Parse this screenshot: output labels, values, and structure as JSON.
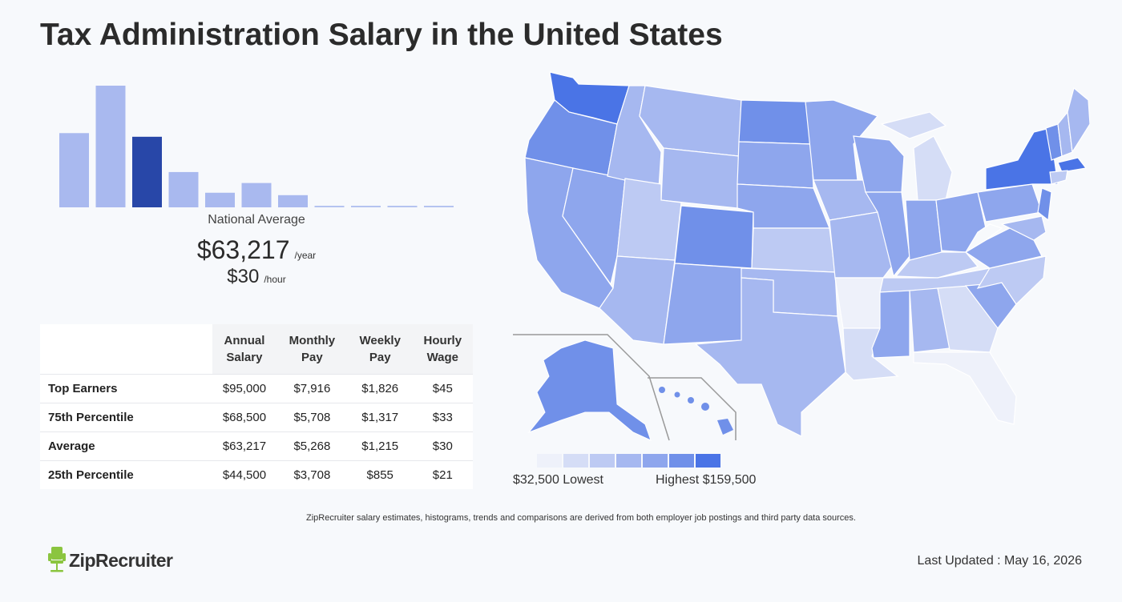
{
  "title": "Tax Administration Salary in the United States",
  "national": {
    "label": "National Average",
    "yearly": "$63,217",
    "yearly_unit": "/year",
    "hourly": "$30",
    "hourly_unit": "/hour"
  },
  "chart_data": {
    "type": "bar",
    "values": [
      61,
      100,
      58,
      29,
      12,
      20,
      10,
      1,
      1,
      1,
      1
    ],
    "highlight_index": 2,
    "colors": {
      "bar": "#a9b9ef",
      "highlight": "#2847a8",
      "flat": "#b5c3f0"
    }
  },
  "table": {
    "headers": [
      [
        "Annual",
        "Salary"
      ],
      [
        "Monthly",
        "Pay"
      ],
      [
        "Weekly",
        "Pay"
      ],
      [
        "Hourly",
        "Wage"
      ]
    ],
    "rows": [
      {
        "label": "Top Earners",
        "values": [
          "$95,000",
          "$7,916",
          "$1,826",
          "$45"
        ]
      },
      {
        "label": "75th Percentile",
        "values": [
          "$68,500",
          "$5,708",
          "$1,317",
          "$33"
        ]
      },
      {
        "label": "Average",
        "values": [
          "$63,217",
          "$5,268",
          "$1,215",
          "$30"
        ]
      },
      {
        "label": "25th Percentile",
        "values": [
          "$44,500",
          "$3,708",
          "$855",
          "$21"
        ]
      }
    ]
  },
  "legend": {
    "low": "$32,500 Lowest",
    "high": "Highest $159,500",
    "colors": [
      "#eef1fa",
      "#d5ddf6",
      "#bdcaf3",
      "#a6b8f0",
      "#8ea6ed",
      "#7090e9",
      "#4a74e6"
    ]
  },
  "footnote": "ZipRecruiter salary estimates, histograms, trends and comparisons are derived from both employer job postings and third party data sources.",
  "brand": "ZipRecruiter",
  "last_updated": "Last Updated : May 16, 2026"
}
